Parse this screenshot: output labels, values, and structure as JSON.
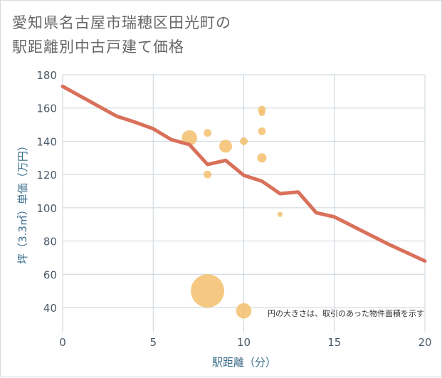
{
  "title_lines": [
    "愛知県名古屋市瑞穂区田光町の",
    "駅距離別中古戸建て価格"
  ],
  "chart_data": {
    "type": "scatter",
    "title": "愛知県名古屋市瑞穂区田光町の駅距離別中古戸建て価格",
    "xlabel": "駅距離（分）",
    "ylabel": "坪（3.3㎡）単価（万円）",
    "xlim": [
      0,
      20
    ],
    "ylim": [
      25,
      180
    ],
    "xticks": [
      0,
      5,
      10,
      15,
      20
    ],
    "yticks": [
      40,
      60,
      80,
      100,
      120,
      140,
      160,
      180
    ],
    "grid": true,
    "note": "円の大きさは、取引のあった物件面積を示す",
    "colors": {
      "line": "#d9705a",
      "bubble": "#f3bf6c",
      "grid": "#c8d4dc",
      "axis_text": "#4a5a6a",
      "axis_title": "#3b6e8c"
    },
    "bubbles": [
      {
        "x": 7,
        "y": 142,
        "size": 3
      },
      {
        "x": 8,
        "y": 145,
        "size": 1.5
      },
      {
        "x": 9,
        "y": 137,
        "size": 2.5
      },
      {
        "x": 8,
        "y": 120,
        "size": 1.5
      },
      {
        "x": 10,
        "y": 140,
        "size": 1.5
      },
      {
        "x": 11,
        "y": 159,
        "size": 1.5
      },
      {
        "x": 11,
        "y": 157,
        "size": 1.2
      },
      {
        "x": 11,
        "y": 146,
        "size": 1.5
      },
      {
        "x": 11,
        "y": 130,
        "size": 1.8
      },
      {
        "x": 12,
        "y": 96,
        "size": 1
      },
      {
        "x": 8,
        "y": 50,
        "size": 6.5
      },
      {
        "x": 10,
        "y": 38,
        "size": 3
      }
    ],
    "trend_line": {
      "x": [
        0,
        1,
        2,
        3,
        4,
        5,
        6,
        7,
        8,
        9,
        10,
        11,
        12,
        13,
        14,
        15,
        16,
        17,
        18,
        19,
        20
      ],
      "y": [
        173,
        167,
        161,
        155,
        151.5,
        147.5,
        141,
        138,
        126,
        128.5,
        119.5,
        116,
        108.5,
        109.5,
        97,
        94.5,
        89,
        83.5,
        78,
        73,
        68
      ]
    }
  }
}
